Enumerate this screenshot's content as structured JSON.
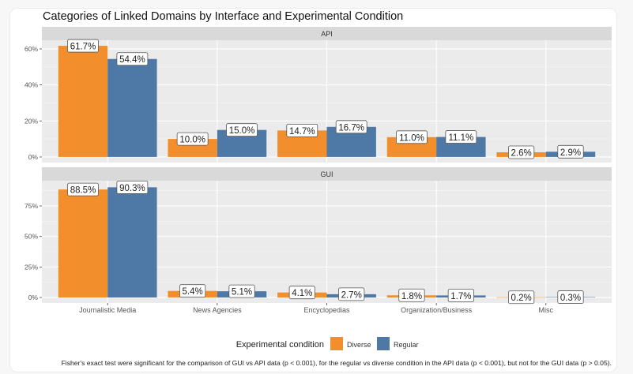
{
  "chart_data": {
    "type": "bar",
    "title": "Categories of Linked Domains by Interface and Experimental Condition",
    "categories": [
      "Journalistic Media",
      "News Agencies",
      "Encyclopedias",
      "Organization/Business",
      "Misc"
    ],
    "legend": {
      "title": "Experimental condition",
      "placement": "bottom"
    },
    "series_colors": {
      "Diverse": "#F28E2B",
      "Regular": "#4E79A7"
    },
    "facets": [
      {
        "name": "API",
        "ylim": [
          -3.1,
          64.8
        ],
        "yticks": [
          0,
          20,
          40,
          60
        ],
        "ytick_labels": [
          "0%",
          "20%",
          "40%",
          "60%"
        ],
        "series": [
          {
            "name": "Diverse",
            "values": [
              61.7,
              10.0,
              14.7,
              11.0,
              2.6
            ],
            "labels": [
              "61.7%",
              "10.0%",
              "14.7%",
              "11.0%",
              "2.6%"
            ]
          },
          {
            "name": "Regular",
            "values": [
              54.4,
              15.0,
              16.7,
              11.1,
              2.9
            ],
            "labels": [
              "54.4%",
              "15.0%",
              "16.7%",
              "11.1%",
              "2.9%"
            ]
          }
        ]
      },
      {
        "name": "GUI",
        "ylim": [
          -4.5,
          95.7
        ],
        "yticks": [
          0,
          25,
          50,
          75
        ],
        "ytick_labels": [
          "0%",
          "25%",
          "50%",
          "75%"
        ],
        "series": [
          {
            "name": "Diverse",
            "values": [
              88.5,
              5.4,
              4.1,
              1.8,
              0.2
            ],
            "labels": [
              "88.5%",
              "5.4%",
              "4.1%",
              "1.8%",
              "0.2%"
            ]
          },
          {
            "name": "Regular",
            "values": [
              90.3,
              5.1,
              2.7,
              1.7,
              0.3
            ],
            "labels": [
              "90.3%",
              "5.1%",
              "2.7%",
              "1.7%",
              "0.3%"
            ]
          }
        ]
      }
    ],
    "caption": "Fisher's exact test were significant for the comparison of GUI vs API data (p < 0.001), for the regular vs diverse condition in the API data (p < 0.001), but not for the GUI data (p > 0.05)."
  }
}
